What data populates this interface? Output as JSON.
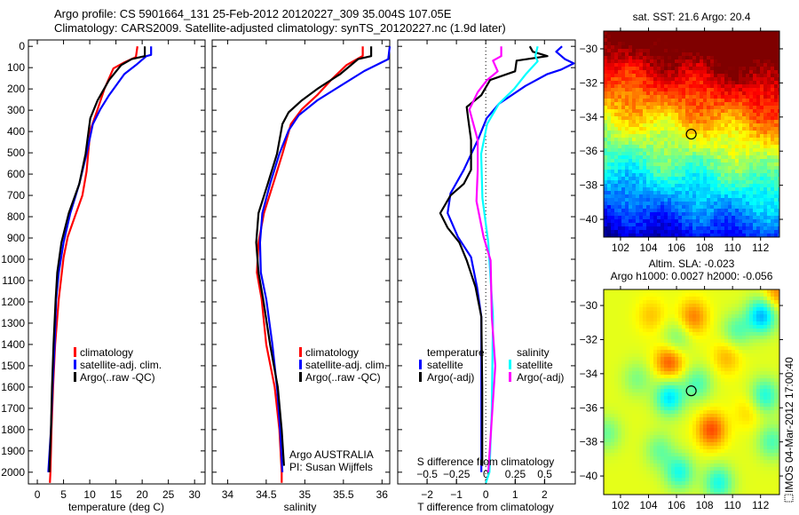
{
  "title": {
    "line1": "Argo profile: CS 5901664_131 25-Feb-2012 20120227_309 35.004S 107.05E",
    "line2": "Climatology: CARS2009. Satellite-adjusted climatology: synTS_20120227.nc (1.9d later)"
  },
  "depth_axis": {
    "ticks": [
      0,
      100,
      200,
      300,
      400,
      500,
      600,
      700,
      800,
      900,
      1000,
      1100,
      1200,
      1300,
      1400,
      1500,
      1600,
      1700,
      1800,
      1900,
      2000
    ],
    "range": [
      -30,
      2055
    ]
  },
  "chart_data": [
    {
      "id": "temperature",
      "type": "line",
      "xlabel": "temperature (deg C)",
      "ylabel": "depth",
      "xlim": [
        -1.7,
        32
      ],
      "xticks": [
        0,
        5,
        10,
        15,
        20,
        25,
        30
      ],
      "legend": [
        "climatology",
        "satellite-adj. clim.",
        "Argo(..raw -QC)"
      ],
      "series": [
        {
          "name": "climatology",
          "color": "#ff0000",
          "points": [
            [
              0,
              19.1
            ],
            [
              50,
              18.8
            ],
            [
              75,
              16.6
            ],
            [
              104,
              14.5
            ],
            [
              200,
              12.8
            ],
            [
              296,
              11.5
            ],
            [
              395,
              10.1
            ],
            [
              588,
              9.4
            ],
            [
              700,
              8.6
            ],
            [
              796,
              7.2
            ],
            [
              895,
              5.8
            ],
            [
              992,
              5.0
            ],
            [
              1187,
              4.1
            ],
            [
              1400,
              3.4
            ],
            [
              1600,
              3.0
            ],
            [
              1800,
              2.7
            ],
            [
              2000,
              2.5
            ],
            [
              2050,
              2.4
            ]
          ]
        },
        {
          "name": "satellite-adj. clim.",
          "color": "#0000ff",
          "points": [
            [
              0,
              21.7
            ],
            [
              40,
              21.7
            ],
            [
              46,
              20.8
            ],
            [
              88,
              18.8
            ],
            [
              130,
              16.6
            ],
            [
              229,
              13.7
            ],
            [
              296,
              12.0
            ],
            [
              365,
              10.6
            ],
            [
              505,
              9.4
            ],
            [
              646,
              8.0
            ],
            [
              783,
              6.3
            ],
            [
              921,
              5.0
            ],
            [
              1062,
              4.1
            ],
            [
              1187,
              3.6
            ],
            [
              1400,
              3.3
            ],
            [
              1600,
              2.9
            ],
            [
              1800,
              2.6
            ],
            [
              2000,
              2.1
            ]
          ]
        },
        {
          "name": "Argo(..raw -QC)",
          "color": "#000000",
          "points": [
            [
              0,
              20.5
            ],
            [
              46,
              20.5
            ],
            [
              60,
              18.0
            ],
            [
              88,
              16.0
            ],
            [
              158,
              13.7
            ],
            [
              254,
              11.5
            ],
            [
              338,
              10.1
            ],
            [
              505,
              9.2
            ],
            [
              646,
              8.0
            ],
            [
              783,
              6.0
            ],
            [
              921,
              4.6
            ],
            [
              1062,
              3.8
            ],
            [
              1187,
              3.5
            ],
            [
              1400,
              3.1
            ],
            [
              1600,
              2.8
            ],
            [
              1800,
              2.6
            ],
            [
              2000,
              2.3
            ]
          ]
        }
      ]
    },
    {
      "id": "salinity",
      "type": "line",
      "xlabel": "salinity",
      "xlim": [
        33.8,
        36.1
      ],
      "xticks": [
        34,
        34.5,
        35,
        35.5,
        36
      ],
      "legend": [
        "climatology",
        "satellite-adj. clim.",
        "Argo(..raw -QC)"
      ],
      "series": [
        {
          "name": "climatology",
          "color": "#ff0000",
          "points": [
            [
              0,
              35.75
            ],
            [
              45,
              35.75
            ],
            [
              88,
              35.54
            ],
            [
              158,
              35.34
            ],
            [
              229,
              35.16
            ],
            [
              296,
              34.96
            ],
            [
              365,
              34.82
            ],
            [
              505,
              34.71
            ],
            [
              646,
              34.59
            ],
            [
              783,
              34.47
            ],
            [
              921,
              34.4
            ],
            [
              1062,
              34.38
            ],
            [
              1187,
              34.44
            ],
            [
              1400,
              34.5
            ],
            [
              1600,
              34.61
            ],
            [
              1800,
              34.67
            ],
            [
              2000,
              34.7
            ],
            [
              2050,
              34.7
            ]
          ]
        },
        {
          "name": "satellite-adj. clim.",
          "color": "#0000ff",
          "points": [
            [
              0,
              36.1
            ],
            [
              60,
              36.08
            ],
            [
              116,
              35.77
            ],
            [
              186,
              35.46
            ],
            [
              254,
              35.16
            ],
            [
              324,
              34.92
            ],
            [
              395,
              34.79
            ],
            [
              505,
              34.67
            ],
            [
              646,
              34.55
            ],
            [
              783,
              34.45
            ],
            [
              921,
              34.42
            ],
            [
              1062,
              34.43
            ],
            [
              1187,
              34.5
            ],
            [
              1400,
              34.58
            ],
            [
              1600,
              34.64
            ],
            [
              1800,
              34.68
            ],
            [
              2000,
              34.71
            ]
          ]
        },
        {
          "name": "Argo(..raw -QC)",
          "color": "#000000",
          "points": [
            [
              0,
              35.86
            ],
            [
              46,
              35.86
            ],
            [
              60,
              35.69
            ],
            [
              130,
              35.46
            ],
            [
              200,
              35.16
            ],
            [
              254,
              34.96
            ],
            [
              310,
              34.79
            ],
            [
              365,
              34.71
            ],
            [
              505,
              34.64
            ],
            [
              646,
              34.52
            ],
            [
              783,
              34.4
            ],
            [
              921,
              34.37
            ],
            [
              1062,
              34.4
            ],
            [
              1187,
              34.46
            ],
            [
              1400,
              34.55
            ],
            [
              1600,
              34.65
            ],
            [
              1800,
              34.7
            ],
            [
              1970,
              34.73
            ]
          ]
        }
      ]
    },
    {
      "id": "difference",
      "type": "line",
      "xlabel": "T difference from climatology",
      "xlabel_secondary": "S difference from climatology",
      "xlim": [
        -3.0,
        3.05
      ],
      "xticks": [
        -2,
        -1,
        0,
        1,
        2
      ],
      "xlim_secondary": [
        -0.75,
        0.76
      ],
      "xticks_secondary": [
        -0.5,
        -0.25,
        0,
        0.25,
        0.5
      ],
      "legend_temperature": {
        "title": "temperature",
        "items": [
          "satellite",
          "Argo(-adj)"
        ]
      },
      "legend_salinity": {
        "title": "salinity",
        "items": [
          "satellite",
          "Argo(-adj)"
        ]
      },
      "series": [
        {
          "name": "temperature satellite",
          "axis": "T",
          "color": "#0000ff",
          "points": [
            [
              0,
              2.6
            ],
            [
              25,
              2.4
            ],
            [
              60,
              2.7
            ],
            [
              80,
              3.0
            ],
            [
              110,
              2.55
            ],
            [
              130,
              2.1
            ],
            [
              186,
              1.35
            ],
            [
              270,
              0.45
            ],
            [
              338,
              0.03
            ],
            [
              440,
              -0.27
            ],
            [
              580,
              -0.75
            ],
            [
              690,
              -1.2
            ],
            [
              783,
              -1.3
            ],
            [
              895,
              -0.95
            ],
            [
              990,
              -0.5
            ],
            [
              1130,
              -0.3
            ],
            [
              1270,
              -0.15
            ],
            [
              1600,
              -0.15
            ],
            [
              2000,
              -0.15
            ]
          ]
        },
        {
          "name": "temperature Argo(-adj)",
          "axis": "T",
          "color": "#000000",
          "points": [
            [
              0,
              1.5
            ],
            [
              25,
              1.6
            ],
            [
              46,
              2.1
            ],
            [
              67,
              1.05
            ],
            [
              117,
              1.0
            ],
            [
              158,
              0.15
            ],
            [
              229,
              -0.15
            ],
            [
              285,
              -0.65
            ],
            [
              338,
              -0.6
            ],
            [
              440,
              -0.5
            ],
            [
              580,
              -0.5
            ],
            [
              646,
              -0.75
            ],
            [
              700,
              -1.2
            ],
            [
              783,
              -1.55
            ],
            [
              852,
              -1.3
            ],
            [
              921,
              -0.9
            ],
            [
              1005,
              -0.65
            ],
            [
              1130,
              -0.35
            ],
            [
              1270,
              -0.15
            ],
            [
              1600,
              -0.12
            ],
            [
              1970,
              -0.12
            ]
          ]
        },
        {
          "name": "salinity satellite",
          "axis": "S",
          "color": "#00ffff",
          "points": [
            [
              0,
              0.44
            ],
            [
              45,
              0.42
            ],
            [
              70,
              0.44
            ],
            [
              130,
              0.34
            ],
            [
              200,
              0.24
            ],
            [
              270,
              0.11
            ],
            [
              365,
              0.01
            ],
            [
              505,
              -0.04
            ],
            [
              713,
              -0.03
            ],
            [
              921,
              0.02
            ],
            [
              1270,
              0.06
            ],
            [
              1700,
              0.05
            ],
            [
              2000,
              0.03
            ],
            [
              2050,
              0.0
            ]
          ]
        },
        {
          "name": "salinity Argo(-adj)",
          "axis": "S",
          "color": "#ff00ff",
          "points": [
            [
              0,
              0.13
            ],
            [
              46,
              0.13
            ],
            [
              67,
              0.06
            ],
            [
              117,
              0.1
            ],
            [
              158,
              0.01
            ],
            [
              215,
              -0.07
            ],
            [
              296,
              -0.14
            ],
            [
              440,
              -0.07
            ],
            [
              580,
              -0.07
            ],
            [
              727,
              -0.08
            ],
            [
              895,
              -0.02
            ],
            [
              1005,
              0.04
            ],
            [
              1270,
              0.05
            ],
            [
              1500,
              0.08
            ],
            [
              2000,
              0.02
            ]
          ]
        }
      ]
    },
    {
      "id": "sst-map",
      "type": "heatmap",
      "title": "sat. SST: 21.6 Argo: 20.4",
      "xlim": [
        100.8,
        113.35
      ],
      "ylim": [
        -41.04,
        -28.96
      ],
      "xticks": [
        102,
        104,
        106,
        108,
        110,
        112
      ],
      "yticks": [
        -30,
        -32,
        -34,
        -36,
        -38,
        -40
      ],
      "marker": {
        "lon": 107.05,
        "lat": -35.004
      },
      "colormap": "jet"
    },
    {
      "id": "sla-map",
      "type": "heatmap",
      "title": "Altim. SLA: -0.023",
      "subtitle": "Argo h1000: 0.0027 h2000: -0.056",
      "xlim": [
        100.8,
        113.35
      ],
      "ylim": [
        -41.09,
        -29.06
      ],
      "xticks": [
        102,
        104,
        106,
        108,
        110,
        112
      ],
      "yticks": [
        -30,
        -32,
        -34,
        -36,
        -38,
        -40
      ],
      "marker": {
        "lon": 107.05,
        "lat": -35.004
      },
      "colormap": "jet"
    }
  ],
  "annotations": {
    "argo_program": "Argo AUSTRALIA",
    "pi": "PI: Susan Wijffels",
    "imos_stamp": "IMOS 04-Mar-2012 17:00:40"
  }
}
